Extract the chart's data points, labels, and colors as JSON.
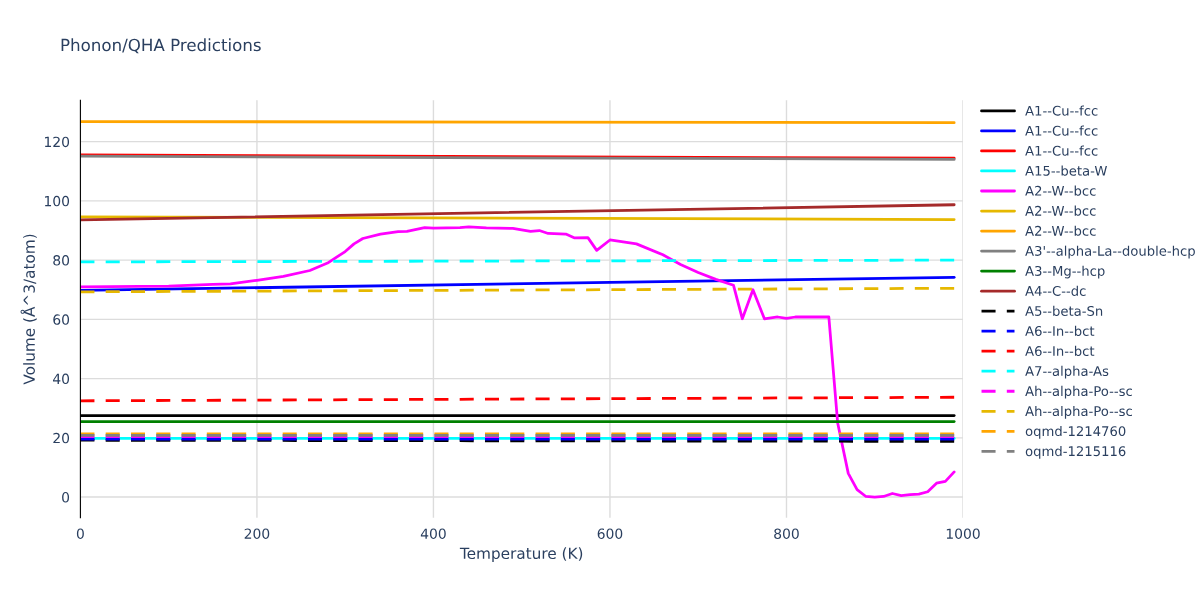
{
  "chart_data": {
    "type": "line",
    "title": "Phonon/QHA Predictions",
    "xlabel": "Temperature (K)",
    "ylabel": "Volume (Å^3/atom)",
    "xlim": [
      0,
      1000
    ],
    "ylim": [
      -7,
      134
    ],
    "xticks": [
      0,
      200,
      400,
      600,
      800,
      1000
    ],
    "yticks": [
      0,
      20,
      40,
      60,
      80,
      100,
      120
    ],
    "grid": true,
    "legend": "right",
    "marker": "none",
    "series": [
      {
        "name": "A1--Cu--fcc",
        "color": "#000000",
        "line_style": "solid",
        "x": [
          0,
          990
        ],
        "values": [
          27.5,
          27.5
        ]
      },
      {
        "name": "A1--Cu--fcc",
        "color": "#0000ff",
        "line_style": "solid",
        "x": [
          0,
          990
        ],
        "values": [
          69.8,
          74.2
        ]
      },
      {
        "name": "A1--Cu--fcc",
        "color": "#ff0000",
        "line_style": "solid",
        "x": [
          0,
          990
        ],
        "values": [
          115.5,
          114.4
        ]
      },
      {
        "name": "A15--beta-W",
        "color": "#00ffff",
        "line_style": "solid",
        "x": [
          0,
          990
        ],
        "values": [
          19.8,
          19.8
        ]
      },
      {
        "name": "A2--W--bcc",
        "color": "#ff00ff",
        "line_style": "solid",
        "x": [
          0,
          100,
          150,
          170,
          200,
          230,
          260,
          280,
          300,
          310,
          320,
          340,
          360,
          370,
          390,
          400,
          430,
          440,
          460,
          490,
          510,
          520,
          530,
          550,
          560,
          575,
          585,
          600,
          630,
          660,
          680,
          700,
          720,
          740,
          750,
          762,
          775,
          790,
          800,
          810,
          830,
          848,
          858,
          870,
          880,
          890,
          900,
          910,
          920,
          930,
          940,
          950,
          960,
          970,
          980,
          990
        ],
        "values": [
          71.0,
          71.2,
          71.8,
          72.0,
          73.2,
          74.5,
          76.5,
          79.0,
          82.9,
          85.5,
          87.3,
          88.8,
          89.6,
          89.7,
          91.0,
          90.8,
          91.0,
          91.2,
          90.9,
          90.7,
          89.7,
          90.0,
          89.0,
          88.8,
          87.5,
          87.6,
          83.3,
          86.8,
          85.5,
          81.8,
          78.5,
          75.8,
          73.5,
          71.5,
          60.2,
          70.0,
          60.2,
          60.8,
          60.3,
          60.8,
          60.8,
          60.8,
          25.0,
          8.0,
          2.5,
          0.2,
          0.0,
          0.2,
          1.2,
          0.5,
          0.8,
          1.0,
          1.8,
          4.7,
          5.3,
          8.5
        ]
      },
      {
        "name": "A2--W--bcc",
        "color": "#e6b800",
        "line_style": "solid",
        "x": [
          0,
          990
        ],
        "values": [
          94.6,
          93.7
        ]
      },
      {
        "name": "A2--W--bcc",
        "color": "#ffa500",
        "line_style": "solid",
        "x": [
          0,
          990
        ],
        "values": [
          126.8,
          126.4
        ]
      },
      {
        "name": "A3'--alpha-La--double-hcp",
        "color": "#808080",
        "line_style": "solid",
        "x": [
          0,
          990
        ],
        "values": [
          115.1,
          114.0
        ]
      },
      {
        "name": "A3--Mg--hcp",
        "color": "#008000",
        "line_style": "solid",
        "x": [
          0,
          990
        ],
        "values": [
          25.5,
          25.5
        ]
      },
      {
        "name": "A4--C--dc",
        "color": "#a52a2a",
        "line_style": "solid",
        "x": [
          0,
          990
        ],
        "values": [
          93.6,
          98.7
        ]
      },
      {
        "name": "A5--beta-Sn",
        "color": "#000000",
        "line_style": "dashed",
        "x": [
          0,
          990
        ],
        "values": [
          19.2,
          18.8
        ]
      },
      {
        "name": "A6--In--bct",
        "color": "#0000ff",
        "line_style": "dashed",
        "x": [
          0,
          990
        ],
        "values": [
          19.6,
          19.6
        ]
      },
      {
        "name": "A6--In--bct",
        "color": "#ff0000",
        "line_style": "dashed",
        "x": [
          0,
          990
        ],
        "values": [
          32.5,
          33.7
        ]
      },
      {
        "name": "A7--alpha-As",
        "color": "#00ffff",
        "line_style": "dashed",
        "x": [
          0,
          990
        ],
        "values": [
          79.4,
          80.0
        ]
      },
      {
        "name": "Ah--alpha-Po--sc",
        "color": "#ff00ff",
        "line_style": "dashed",
        "x": [
          0,
          990
        ],
        "values": [
          20.4,
          20.4
        ]
      },
      {
        "name": "Ah--alpha-Po--sc",
        "color": "#e6b800",
        "line_style": "dashed",
        "x": [
          0,
          990
        ],
        "values": [
          69.3,
          70.5
        ]
      },
      {
        "name": "oqmd-1214760",
        "color": "#ffa500",
        "line_style": "dashed",
        "x": [
          0,
          990
        ],
        "values": [
          21.3,
          21.3
        ]
      },
      {
        "name": "oqmd-1215116",
        "color": "#808080",
        "line_style": "dashed",
        "x": [
          0,
          990
        ],
        "values": [
          20.8,
          20.8
        ]
      }
    ]
  }
}
